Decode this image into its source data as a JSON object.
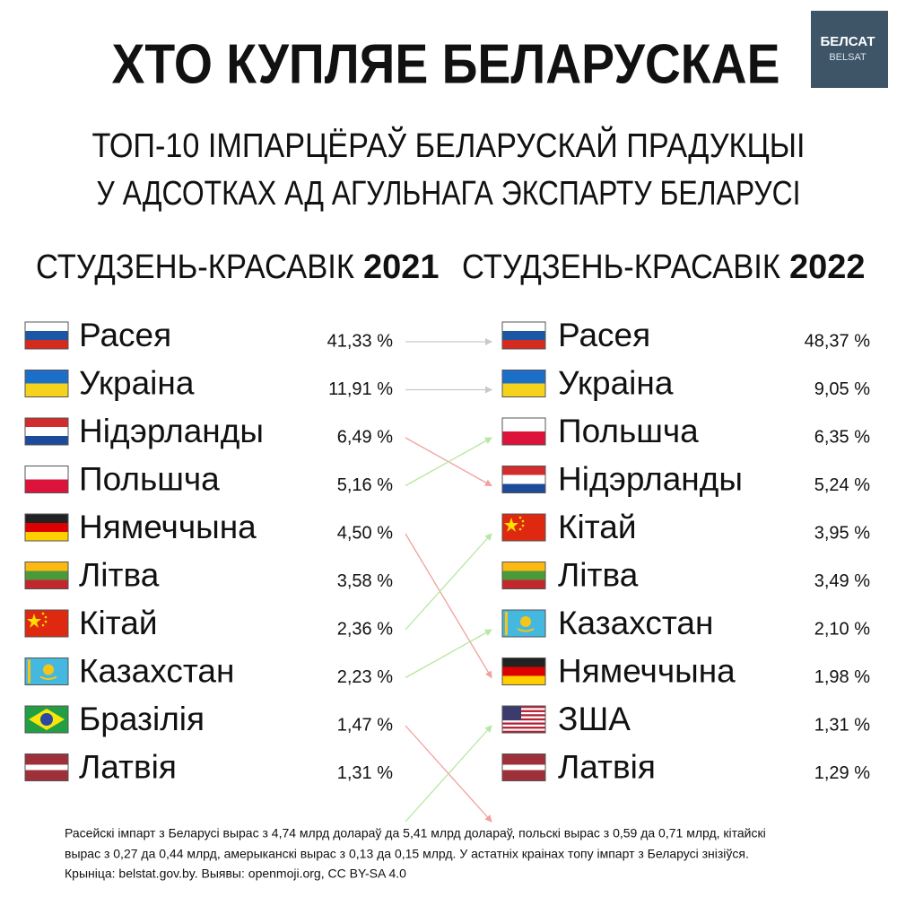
{
  "header": {
    "title": "ХТО КУПЛЯЕ БЕЛАРУСКАЕ",
    "logo": [
      "БЕЛСАТ",
      "BELSAT"
    ],
    "subtitle": [
      "ТОП-10 ІМПАРЦЁРАЎ БЕЛАРУСКАЙ ПРАДУКЦЫІ",
      "У АДСОТКАХ АД АГУЛЬНАГА ЭКСПАРТУ БЕЛАРУСІ"
    ]
  },
  "columns": [
    {
      "period": "СТУДЗЕНЬ-КРАСАВІК",
      "year": "2021",
      "rows": [
        [
          "Расея",
          "41,33 %"
        ],
        [
          "Украіна",
          "11,91 %"
        ],
        [
          "Нідэрланды",
          "6,49 %"
        ],
        [
          "Польшча",
          "5,16 %"
        ],
        [
          "Нямеччына",
          "4,50 %"
        ],
        [
          "Літва",
          "3,58 %"
        ],
        [
          "Кітай",
          "2,36 %"
        ],
        [
          "Казахстан",
          "2,23 %"
        ],
        [
          "Бразілія",
          "1,47 %"
        ],
        [
          "Латвія",
          "1,31 %"
        ]
      ]
    },
    {
      "period": "СТУДЗЕНЬ-КРАСАВІК",
      "year": "2022",
      "rows": [
        [
          "Расея",
          "48,37 %"
        ],
        [
          "Украіна",
          "9,05 %"
        ],
        [
          "Польшча",
          "6,35 %"
        ],
        [
          "Нідэрланды",
          "5,24 %"
        ],
        [
          "Кітай",
          "3,95 %"
        ],
        [
          "Літва",
          "3,49 %"
        ],
        [
          "Казахстан",
          "2,10 %"
        ],
        [
          "Нямеччына",
          "1,98 %"
        ],
        [
          "ЗША",
          "1,31 %"
        ],
        [
          "Латвія",
          "1,29 %"
        ]
      ]
    }
  ],
  "footer": [
    "Расейскі імпарт з Беларусі вырас з 4,74 млрд долараў да 5,41 млрд долараў, польскі вырас з 0,59 да 0,71 млрд, кітайскі",
    "вырас з 0,27 да 0,44 млрд, амерыканскі вырас з 0,13 да 0,15 млрд. У астатніх краінах топу імпарт з Беларусі знізіўся.",
    "Крыніца: belstat.gov.by. Выявы: openmoji.org, CC BY-SA 4.0"
  ]
}
